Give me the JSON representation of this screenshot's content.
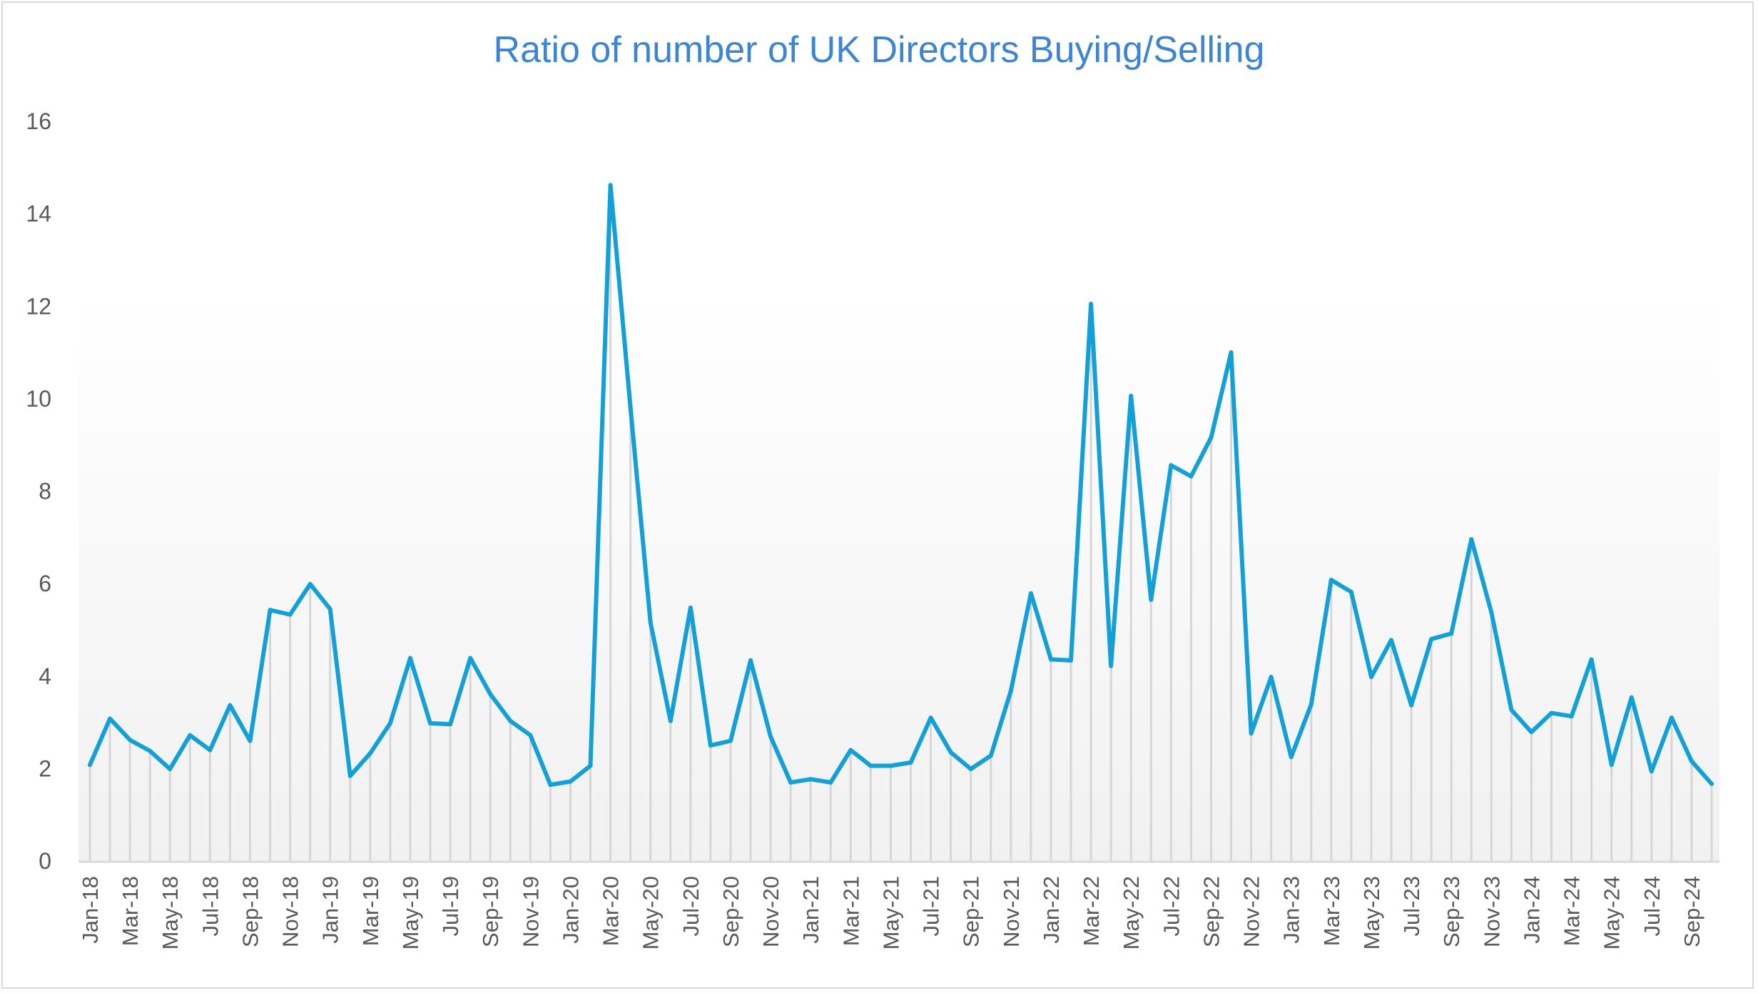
{
  "chart_data": {
    "type": "line",
    "title": "Ratio of number of UK Directors Buying/Selling",
    "xlabel": "",
    "ylabel": "",
    "ylim": [
      0,
      16
    ],
    "yticks": [
      0,
      2,
      4,
      6,
      8,
      10,
      12,
      14,
      16
    ],
    "grid": false,
    "drop_lines": true,
    "line_color": "#12a0d7",
    "x": [
      "Jan-18",
      "Feb-18",
      "Mar-18",
      "Apr-18",
      "May-18",
      "Jun-18",
      "Jul-18",
      "Aug-18",
      "Sep-18",
      "Oct-18",
      "Nov-18",
      "Dec-18",
      "Jan-19",
      "Feb-19",
      "Mar-19",
      "Apr-19",
      "May-19",
      "Jun-19",
      "Jul-19",
      "Aug-19",
      "Sep-19",
      "Oct-19",
      "Nov-19",
      "Dec-19",
      "Jan-20",
      "Feb-20",
      "Mar-20",
      "Apr-20",
      "May-20",
      "Jun-20",
      "Jul-20",
      "Aug-20",
      "Sep-20",
      "Oct-20",
      "Nov-20",
      "Dec-20",
      "Jan-21",
      "Feb-21",
      "Mar-21",
      "Apr-21",
      "May-21",
      "Jun-21",
      "Jul-21",
      "Aug-21",
      "Sep-21",
      "Oct-21",
      "Nov-21",
      "Dec-21",
      "Jan-22",
      "Feb-22",
      "Mar-22",
      "Apr-22",
      "May-22",
      "Jun-22",
      "Jul-22",
      "Aug-22",
      "Sep-22",
      "Oct-22",
      "Nov-22",
      "Dec-22",
      "Jan-23",
      "Feb-23",
      "Mar-23",
      "Apr-23",
      "May-23",
      "Jun-23",
      "Jul-23",
      "Aug-23",
      "Sep-23",
      "Oct-23",
      "Nov-23",
      "Dec-23",
      "Jan-24",
      "Feb-24",
      "Mar-24",
      "Apr-24",
      "May-24",
      "Jun-24",
      "Jul-24",
      "Aug-24",
      "Sep-24",
      "Oct-24"
    ],
    "series": [
      {
        "values": [
          2.08,
          3.08,
          2.62,
          2.38,
          1.99,
          2.72,
          2.4,
          3.37,
          2.6,
          5.43,
          5.33,
          5.99,
          5.45,
          1.84,
          2.33,
          2.98,
          4.39,
          2.98,
          2.96,
          4.39,
          3.61,
          3.03,
          2.72,
          1.65,
          1.72,
          2.06,
          14.62,
          9.8,
          5.16,
          3.03,
          5.48,
          2.5,
          2.6,
          4.34,
          2.69,
          1.7,
          1.77,
          1.7,
          2.4,
          2.06,
          2.06,
          2.13,
          3.1,
          2.35,
          1.99,
          2.28,
          3.68,
          5.79,
          4.36,
          4.34,
          12.05,
          4.22,
          10.06,
          5.65,
          8.56,
          8.32,
          9.16,
          11.0,
          2.76,
          3.98,
          2.25,
          3.39,
          6.08,
          5.82,
          3.98,
          4.78,
          3.37,
          4.8,
          4.92,
          6.96,
          5.38,
          3.27,
          2.79,
          3.2,
          3.13,
          4.36,
          2.08,
          3.54,
          1.94,
          3.1,
          2.16,
          1.67
        ]
      }
    ]
  }
}
